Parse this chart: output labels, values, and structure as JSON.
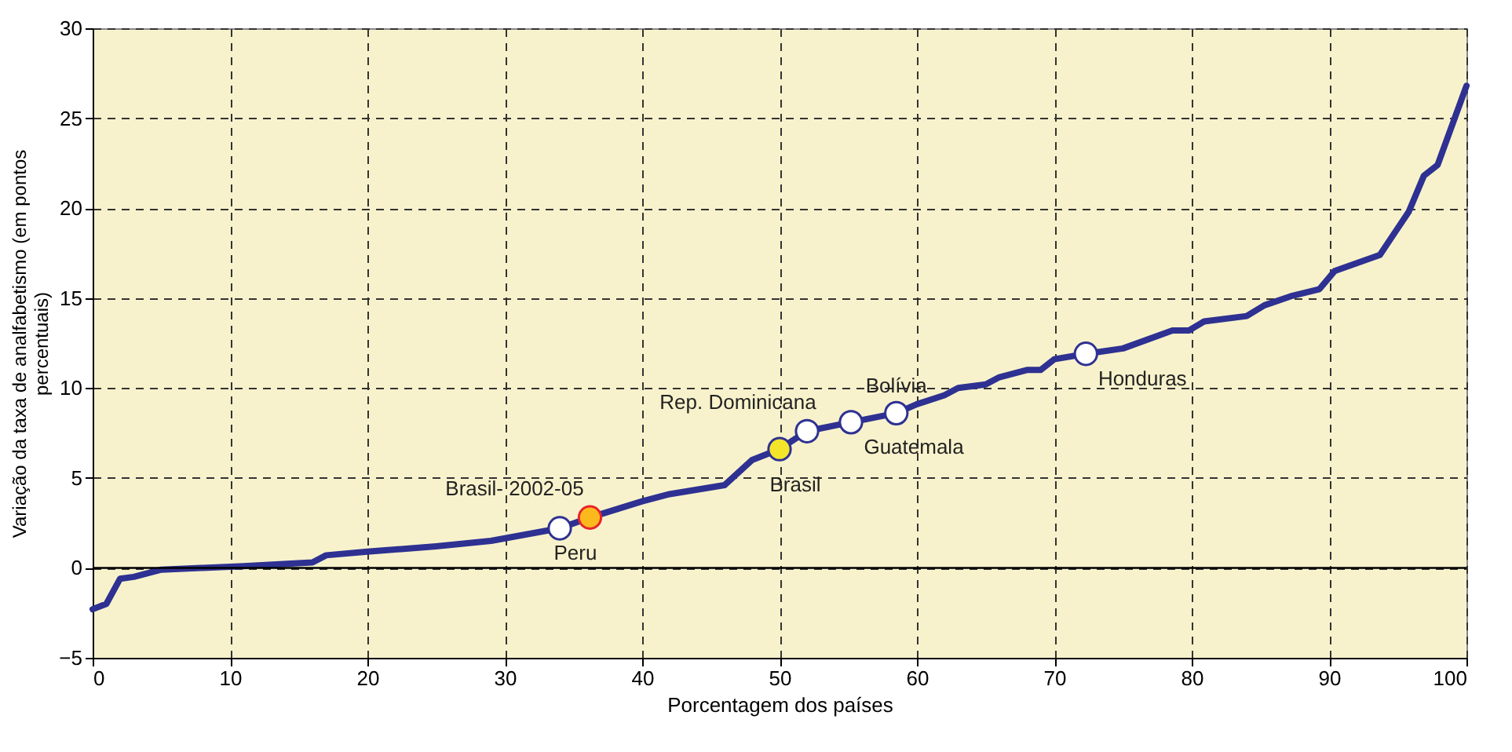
{
  "chart_data": {
    "type": "line",
    "xlabel": "Porcentagem dos países",
    "ylabel": "Variação da taxa de analfabetismo (em pontos percentuais)",
    "xlim": [
      0,
      100
    ],
    "xticks": [
      0,
      10,
      20,
      30,
      40,
      50,
      60,
      70,
      80,
      90,
      100
    ],
    "ylim": [
      -5,
      30
    ],
    "yticks": [
      -5,
      0,
      5,
      10,
      15,
      20,
      25,
      30
    ],
    "grid": true,
    "ref_lines": [
      {
        "axis": "y",
        "value": 0,
        "color": "#000000",
        "line_style": "solid"
      }
    ],
    "series": [
      {
        "color": "#2e3192",
        "line_style": "solid",
        "x": [
          0,
          1,
          2,
          3,
          5,
          8,
          11,
          16,
          17,
          20,
          25,
          29,
          34,
          36.2,
          40,
          42,
          46,
          48,
          50,
          52,
          55.2,
          58.5,
          60,
          62,
          63,
          65,
          66,
          68,
          69,
          70,
          72.3,
          75,
          78.6,
          79.8,
          80.9,
          84,
          85.3,
          87.2,
          89.3,
          90.4,
          93.7,
          95.8,
          96.9,
          97.9,
          100
        ],
        "values": [
          -2.3,
          -2.0,
          -0.6,
          -0.5,
          -0.1,
          0,
          0.1,
          0.3,
          0.7,
          0.9,
          1.2,
          1.5,
          2.2,
          2.8,
          3.7,
          4.1,
          4.6,
          6.0,
          6.6,
          7.6,
          8.1,
          8.6,
          9.1,
          9.6,
          10.0,
          10.2,
          10.6,
          11.0,
          11.0,
          11.6,
          11.9,
          12.2,
          13.2,
          13.2,
          13.7,
          14.0,
          14.6,
          15.1,
          15.5,
          16.5,
          17.4,
          19.8,
          21.8,
          22.4,
          26.8
        ]
      },
      {
        "type": "scatter",
        "color": "#ffffff",
        "marker": "circle",
        "x": [
          34,
          52,
          55.2,
          58.5,
          72.3
        ],
        "values": [
          2.2,
          7.6,
          8.1,
          8.6,
          11.9
        ]
      },
      {
        "type": "scatter",
        "color": "#fbb91e",
        "marker": "circle",
        "x": [
          36.2
        ],
        "values": [
          2.8
        ]
      },
      {
        "type": "scatter",
        "color": "#f5e52a",
        "marker": "circle",
        "x": [
          50
        ],
        "values": [
          6.6
        ]
      }
    ],
    "annotations": [
      {
        "text": "Peru",
        "x": 34,
        "y": 2.2
      },
      {
        "text": "Brasil- 2002-05",
        "x": 36.2,
        "y": 2.8
      },
      {
        "text": "Brasil",
        "x": 50,
        "y": 6.6
      },
      {
        "text": "Rep. Dominicana",
        "x": 52,
        "y": 7.6
      },
      {
        "text": "Guatemala",
        "x": 55.2,
        "y": 8.1
      },
      {
        "text": "Bolívia",
        "x": 58.5,
        "y": 8.6
      },
      {
        "text": "Honduras",
        "x": 72.3,
        "y": 11.9
      }
    ]
  }
}
